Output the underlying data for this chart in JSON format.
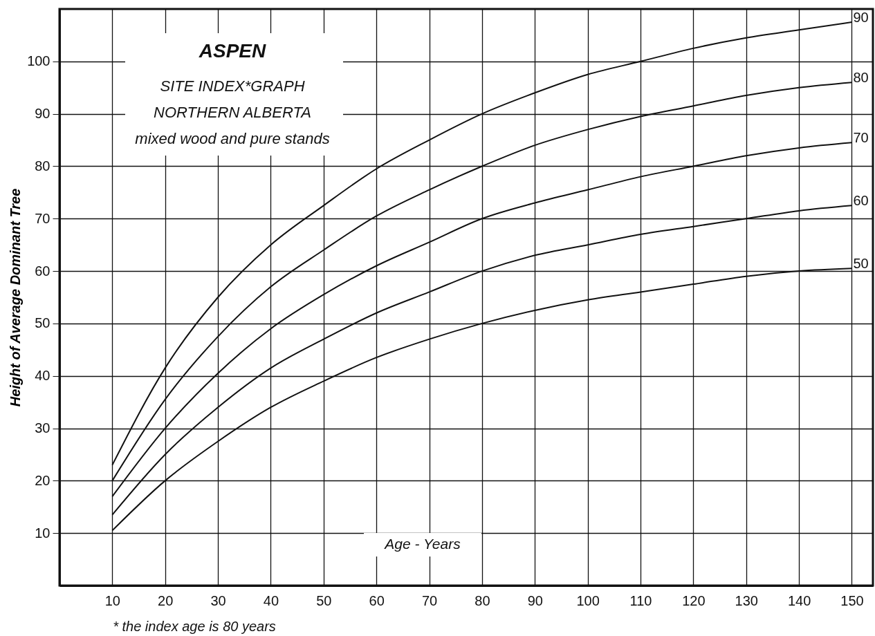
{
  "chart_data": {
    "type": "line",
    "title": "ASPEN",
    "subtitle": "SITE INDEX*GRAPH\nNORTHERN ALBERTA\nmixed wood and pure stands",
    "xlabel": "Age - Years",
    "ylabel": "Height of Average Dominant Tree",
    "annotations": [
      "* the index age is 80 years"
    ],
    "x": [
      10,
      20,
      30,
      40,
      50,
      60,
      70,
      80,
      90,
      100,
      110,
      120,
      130,
      140,
      150
    ],
    "series": [
      {
        "name": "90",
        "color": "#111111",
        "values": [
          23,
          41.5,
          55,
          65,
          72.5,
          79.5,
          85,
          90,
          94,
          97.5,
          100,
          102.5,
          104.5,
          106,
          107.5
        ]
      },
      {
        "name": "80",
        "color": "#111111",
        "values": [
          20,
          35.5,
          47.5,
          57,
          64,
          70.5,
          75.5,
          80,
          84,
          87,
          89.5,
          91.5,
          93.5,
          95,
          96
        ]
      },
      {
        "name": "70",
        "color": "#111111",
        "values": [
          17,
          30,
          40.5,
          49,
          55.5,
          61,
          65.5,
          70,
          73,
          75.5,
          78,
          80,
          82,
          83.5,
          84.5
        ]
      },
      {
        "name": "60",
        "color": "#111111",
        "values": [
          13.5,
          25,
          34,
          41.5,
          47,
          52,
          56,
          60,
          63,
          65,
          67,
          68.5,
          70,
          71.5,
          72.5
        ]
      },
      {
        "name": "50",
        "color": "#111111",
        "values": [
          10.5,
          20,
          27.5,
          34,
          39,
          43.5,
          47,
          50,
          52.5,
          54.5,
          56,
          57.5,
          59,
          60,
          60.5
        ]
      }
    ],
    "xlim": [
      0,
      154
    ],
    "ylim": [
      0,
      110
    ],
    "xticks": [
      10,
      20,
      30,
      40,
      50,
      60,
      70,
      80,
      90,
      100,
      110,
      120,
      130,
      140,
      150
    ],
    "yticks": [
      10,
      20,
      30,
      40,
      50,
      60,
      70,
      80,
      90,
      100
    ],
    "grid": true,
    "marker": "none",
    "line_style": "solid"
  }
}
